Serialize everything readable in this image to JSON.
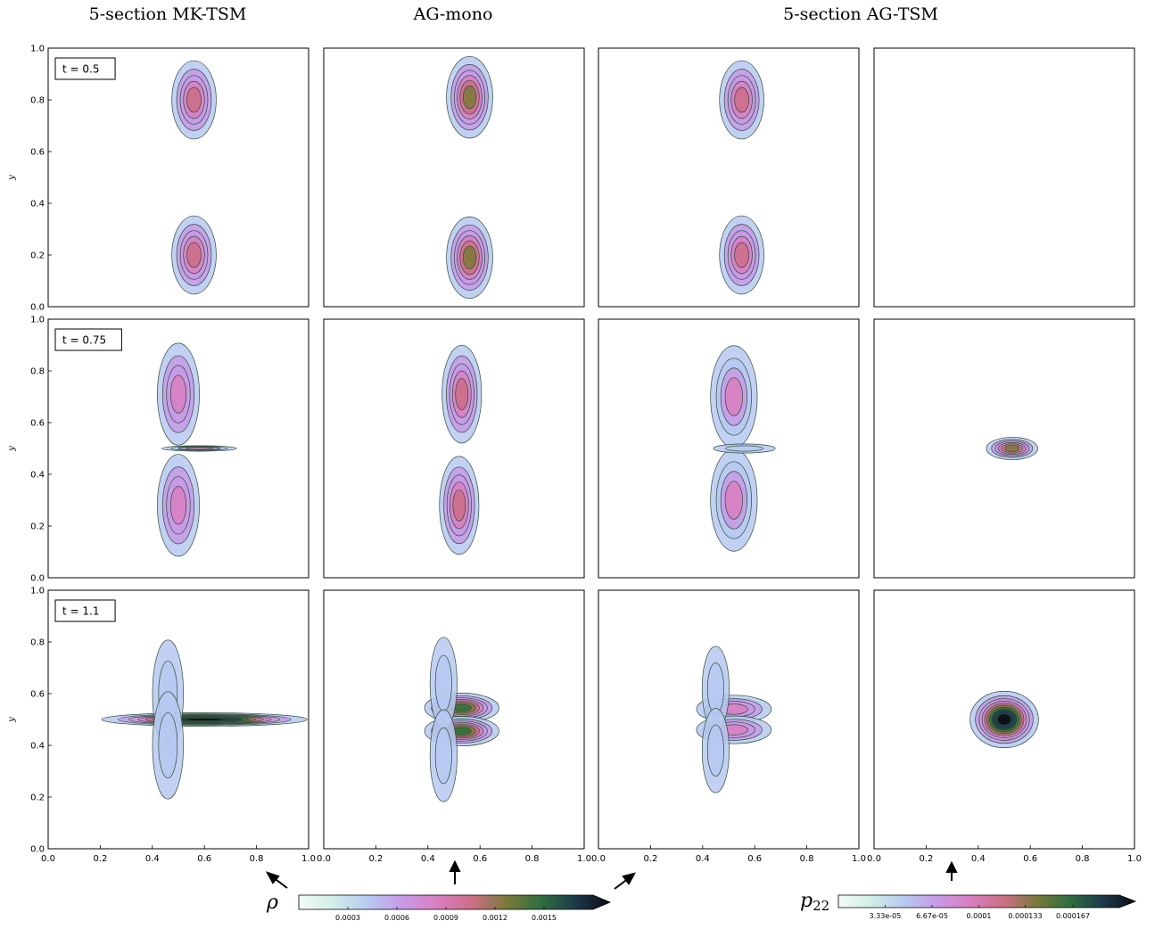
{
  "column_titles": [
    "5-section MK-TSM",
    "AG-mono",
    "5-section AG-TSM"
  ],
  "time_labels": [
    "t = 0.5",
    "t = 0.75",
    "t = 1.1"
  ],
  "axis_ylabel": "y",
  "x_ticks": [
    "0.0",
    "0.2",
    "0.4",
    "0.6",
    "0.8",
    "1.0"
  ],
  "y_ticks": [
    "0.0",
    "0.2",
    "0.4",
    "0.6",
    "0.8",
    "1.0"
  ],
  "colorbar_rho": {
    "symbol": "ρ",
    "ticks": [
      "0.0003",
      "0.0006",
      "0.0009",
      "0.0012",
      "0.0015"
    ],
    "tick_values": [
      0.0003,
      0.0006,
      0.0009,
      0.0012,
      0.0015
    ],
    "range": [
      0,
      0.0018
    ]
  },
  "colorbar_p22": {
    "symbol_base": "p",
    "symbol_sub": "22",
    "ticks": [
      "3.33e-05",
      "6.67e-05",
      "0.0001",
      "0.000133",
      "0.000167"
    ],
    "tick_values": [
      3.33e-05,
      6.67e-05,
      0.0001,
      0.000133,
      0.000167
    ],
    "range": [
      0,
      0.0002
    ]
  },
  "colors": {
    "colormap": [
      "#f4fbf8",
      "#cfeee6",
      "#b7c9f1",
      "#c79ae6",
      "#d97fc1",
      "#cc6f86",
      "#7a7a3a",
      "#2f6e3f",
      "#1e3a4a",
      "#0b0b14"
    ],
    "contour_line": "#2e4d38"
  },
  "chart_data": {
    "type": "contour",
    "grid": [
      3,
      4
    ],
    "xlim": [
      0,
      1
    ],
    "ylim": [
      0,
      1
    ],
    "panels": [
      {
        "row": 0,
        "col": 0,
        "field": "rho",
        "blobs": [
          {
            "x": 0.56,
            "y": 0.8,
            "sx": 0.045,
            "sy": 0.08,
            "peak": 0.0009
          },
          {
            "x": 0.56,
            "y": 0.2,
            "sx": 0.045,
            "sy": 0.08,
            "peak": 0.0009
          }
        ]
      },
      {
        "row": 0,
        "col": 1,
        "field": "rho",
        "blobs": [
          {
            "x": 0.56,
            "y": 0.81,
            "sx": 0.045,
            "sy": 0.08,
            "peak": 0.0011
          },
          {
            "x": 0.56,
            "y": 0.19,
            "sx": 0.045,
            "sy": 0.08,
            "peak": 0.0011
          }
        ]
      },
      {
        "row": 0,
        "col": 2,
        "field": "rho",
        "blobs": [
          {
            "x": 0.55,
            "y": 0.8,
            "sx": 0.045,
            "sy": 0.08,
            "peak": 0.0009
          },
          {
            "x": 0.55,
            "y": 0.2,
            "sx": 0.045,
            "sy": 0.08,
            "peak": 0.0009
          }
        ]
      },
      {
        "row": 0,
        "col": 3,
        "field": "p22",
        "blobs": []
      },
      {
        "row": 1,
        "col": 0,
        "field": "rho",
        "blobs": [
          {
            "x": 0.5,
            "y": 0.71,
            "sx": 0.045,
            "sy": 0.11,
            "peak": 0.0008
          },
          {
            "x": 0.5,
            "y": 0.28,
            "sx": 0.045,
            "sy": 0.11,
            "peak": 0.0008
          },
          {
            "x": 0.58,
            "y": 0.5,
            "sx": 0.08,
            "sy": 0.006,
            "peak": 0.0007
          }
        ]
      },
      {
        "row": 1,
        "col": 1,
        "field": "rho",
        "blobs": [
          {
            "x": 0.53,
            "y": 0.71,
            "sx": 0.04,
            "sy": 0.1,
            "peak": 0.0009
          },
          {
            "x": 0.52,
            "y": 0.28,
            "sx": 0.04,
            "sy": 0.1,
            "peak": 0.0009
          }
        ]
      },
      {
        "row": 1,
        "col": 2,
        "field": "rho",
        "blobs": [
          {
            "x": 0.52,
            "y": 0.7,
            "sx": 0.05,
            "sy": 0.11,
            "peak": 0.0007
          },
          {
            "x": 0.52,
            "y": 0.3,
            "sx": 0.05,
            "sy": 0.11,
            "peak": 0.0007
          },
          {
            "x": 0.56,
            "y": 0.5,
            "sx": 0.08,
            "sy": 0.012,
            "peak": 0.0003
          }
        ]
      },
      {
        "row": 1,
        "col": 3,
        "field": "p22",
        "blobs": [
          {
            "x": 0.53,
            "y": 0.5,
            "sx": 0.05,
            "sy": 0.022,
            "peak": 0.0001
          }
        ]
      },
      {
        "row": 2,
        "col": 0,
        "field": "rho",
        "blobs": [
          {
            "x": 0.6,
            "y": 0.5,
            "sx": 0.18,
            "sy": 0.012,
            "peak": 0.0018
          },
          {
            "x": 0.46,
            "y": 0.6,
            "sx": 0.04,
            "sy": 0.14,
            "peak": 0.0004
          },
          {
            "x": 0.46,
            "y": 0.4,
            "sx": 0.04,
            "sy": 0.14,
            "peak": 0.0004
          }
        ]
      },
      {
        "row": 2,
        "col": 1,
        "field": "rho",
        "blobs": [
          {
            "x": 0.53,
            "y": 0.545,
            "sx": 0.07,
            "sy": 0.028,
            "peak": 0.0013
          },
          {
            "x": 0.53,
            "y": 0.455,
            "sx": 0.07,
            "sy": 0.028,
            "peak": 0.0013
          },
          {
            "x": 0.46,
            "y": 0.64,
            "sx": 0.035,
            "sy": 0.12,
            "peak": 0.0004
          },
          {
            "x": 0.46,
            "y": 0.36,
            "sx": 0.035,
            "sy": 0.12,
            "peak": 0.0004
          }
        ]
      },
      {
        "row": 2,
        "col": 2,
        "field": "rho",
        "blobs": [
          {
            "x": 0.52,
            "y": 0.54,
            "sx": 0.08,
            "sy": 0.03,
            "peak": 0.0008
          },
          {
            "x": 0.52,
            "y": 0.46,
            "sx": 0.08,
            "sy": 0.03,
            "peak": 0.0008
          },
          {
            "x": 0.45,
            "y": 0.62,
            "sx": 0.035,
            "sy": 0.11,
            "peak": 0.0003
          },
          {
            "x": 0.45,
            "y": 0.38,
            "sx": 0.035,
            "sy": 0.11,
            "peak": 0.0003
          }
        ]
      },
      {
        "row": 2,
        "col": 3,
        "field": "p22",
        "blobs": [
          {
            "x": 0.5,
            "y": 0.5,
            "sx": 0.06,
            "sy": 0.05,
            "peak": 0.000165
          }
        ]
      }
    ]
  }
}
